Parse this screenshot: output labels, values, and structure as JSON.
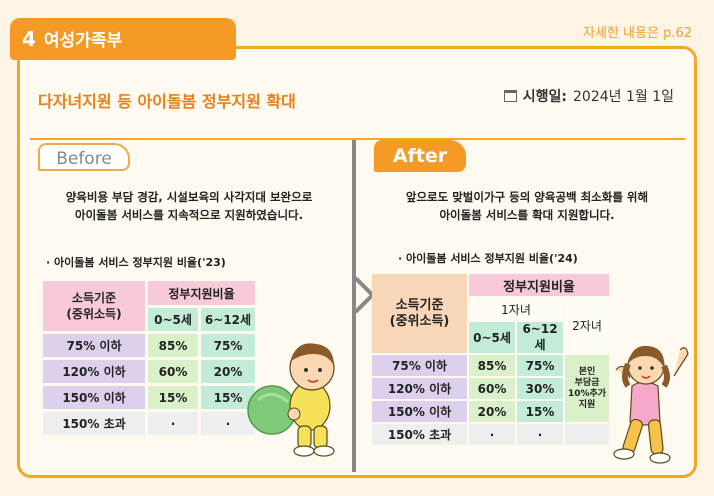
{
  "section": {
    "number": "4",
    "name": "여성가족부"
  },
  "detail_link": "자세한 내용은 p.62",
  "title": "다자녀지원 등 아이돌봄 정부지원 확대",
  "effective_date": {
    "label": "시행일:",
    "value": "2024년 1월 1일"
  },
  "before": {
    "badge": "Before",
    "desc_line1": "양육비용 부담 경감, 시설보육의 사각지대 보완으로",
    "desc_line2": "아이돌봄 서비스를 지속적으로 지원하였습니다.",
    "table_caption": "· 아이돌봄 서비스 정부지원 비율('23)",
    "header_income": "소득기준\n(중위소득)",
    "header_ratio": "정부지원비율",
    "age_cols": [
      "0~5세",
      "6~12세"
    ],
    "rows": [
      {
        "income": "75% 이하",
        "a": "85%",
        "b": "75%"
      },
      {
        "income": "120% 이하",
        "a": "60%",
        "b": "20%"
      },
      {
        "income": "150% 이하",
        "a": "15%",
        "b": "15%"
      },
      {
        "income": "150% 초과",
        "a": "·",
        "b": "·"
      }
    ]
  },
  "after": {
    "badge": "After",
    "desc_line1": "앞으로도 맞벌이가구 등의 양육공백 최소화를 위해",
    "desc_line2": "아이돌봄 서비스를 확대 지원합니다.",
    "table_caption": "· 아이돌봄 서비스 정부지원 비율('24)",
    "header_income": "소득기준\n(중위소득)",
    "header_ratio": "정부지원비율",
    "first_child": "1자녀",
    "second_child": "2자녀",
    "age_cols": [
      "0~5세",
      "6~12세"
    ],
    "second_child_note": "본인\n부담금\n10%추가\n지원",
    "rows": [
      {
        "income": "75% 이하",
        "a": "85%",
        "b": "75%"
      },
      {
        "income": "120% 이하",
        "a": "60%",
        "b": "30%"
      },
      {
        "income": "150% 이하",
        "a": "20%",
        "b": "15%"
      },
      {
        "income": "150% 초과",
        "a": "·",
        "b": "·"
      }
    ]
  }
}
